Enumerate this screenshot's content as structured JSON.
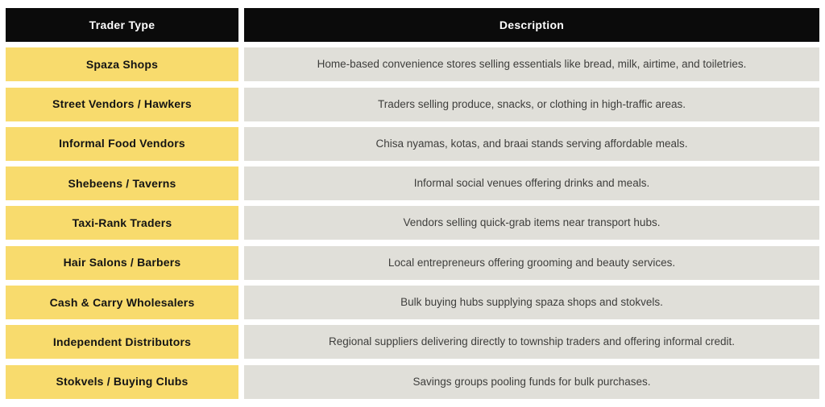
{
  "table": {
    "header": {
      "trader_type": "Trader Type",
      "description": "Description"
    },
    "rows": [
      {
        "type": "Spaza Shops",
        "desc": "Home-based convenience stores selling essentials like bread, milk, airtime, and toiletries."
      },
      {
        "type": "Street Vendors / Hawkers",
        "desc": "Traders selling produce, snacks, or clothing in high-traffic areas."
      },
      {
        "type": "Informal Food Vendors",
        "desc": "Chisa nyamas, kotas, and braai stands serving affordable meals."
      },
      {
        "type": "Shebeens / Taverns",
        "desc": "Informal social venues offering drinks and meals."
      },
      {
        "type": "Taxi-Rank Traders",
        "desc": "Vendors selling quick-grab items near transport hubs."
      },
      {
        "type": "Hair Salons / Barbers",
        "desc": "Local entrepreneurs offering grooming and beauty services."
      },
      {
        "type": "Cash & Carry Wholesalers",
        "desc": "Bulk buying hubs supplying spaza shops and stokvels."
      },
      {
        "type": "Independent Distributors",
        "desc": "Regional suppliers delivering directly to township traders and offering informal credit."
      },
      {
        "type": "Stokvels / Buying Clubs",
        "desc": "Savings groups pooling funds for bulk purchases."
      }
    ]
  },
  "colors": {
    "header_bg": "#0b0b0b",
    "header_text": "#ffffff",
    "trader_bg": "#f8db6d",
    "trader_text": "#141414",
    "desc_bg": "#e0dfd9",
    "desc_text": "#3e3e3c",
    "page_bg": "#ffffff"
  }
}
